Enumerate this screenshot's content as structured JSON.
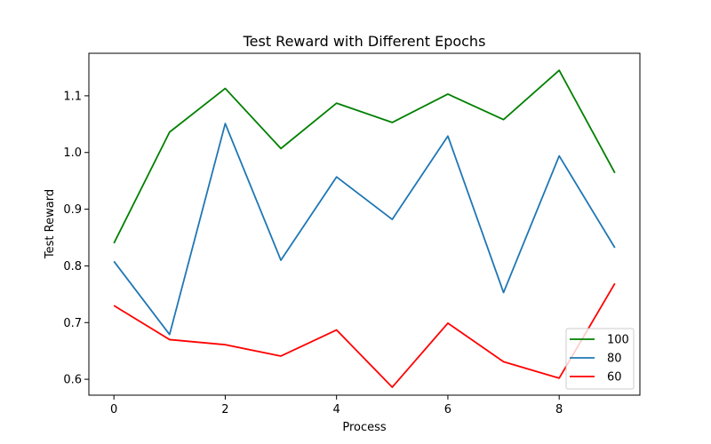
{
  "chart_data": {
    "type": "line",
    "title": "Test Reward with Different Epochs",
    "xlabel": "Process",
    "ylabel": "Test Reward",
    "x": [
      0,
      1,
      2,
      3,
      4,
      5,
      6,
      7,
      8,
      9
    ],
    "xlim": [
      -0.45,
      9.45
    ],
    "ylim": [
      0.572,
      1.175
    ],
    "xticks": [
      0,
      2,
      4,
      6,
      8
    ],
    "xtick_labels": [
      "0",
      "2",
      "4",
      "6",
      "8"
    ],
    "yticks": [
      0.6,
      0.7,
      0.8,
      0.9,
      1.0,
      1.1
    ],
    "ytick_labels": [
      "0.6",
      "0.7",
      "0.8",
      "0.9",
      "1.0",
      "1.1"
    ],
    "grid": false,
    "legend_position": "lower-right",
    "series": [
      {
        "name": "100",
        "color": "#008000",
        "values": [
          0.84,
          1.036,
          1.113,
          1.007,
          1.087,
          1.053,
          1.103,
          1.058,
          1.145,
          0.964
        ]
      },
      {
        "name": "80",
        "color": "#1f77b4",
        "values": [
          0.808,
          0.679,
          1.051,
          0.81,
          0.957,
          0.882,
          1.029,
          0.753,
          0.994,
          0.832
        ]
      },
      {
        "name": "60",
        "color": "#ff0000",
        "values": [
          0.73,
          0.67,
          0.661,
          0.641,
          0.687,
          0.586,
          0.699,
          0.631,
          0.602,
          0.769
        ]
      }
    ]
  }
}
